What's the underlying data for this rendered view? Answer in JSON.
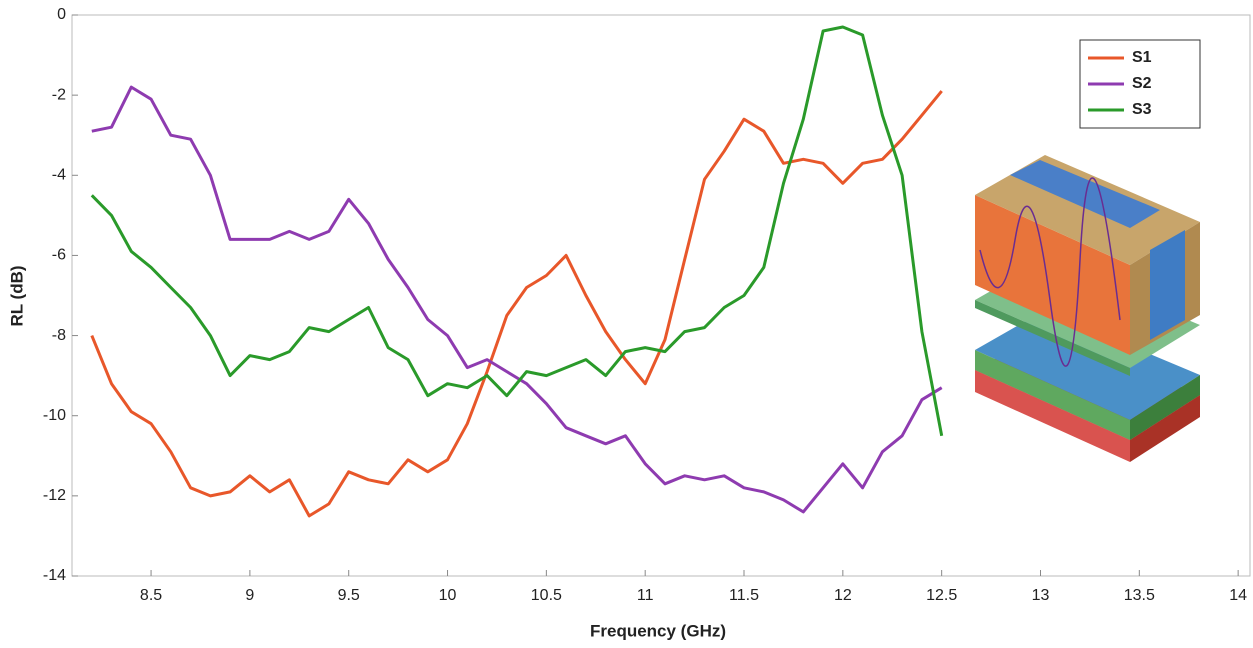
{
  "chart_data": {
    "type": "line",
    "xlabel": "Frequency (GHz)",
    "ylabel": "RL (dB)",
    "x": [
      8.2,
      8.3,
      8.4,
      8.5,
      8.6,
      8.7,
      8.8,
      8.9,
      9.0,
      9.1,
      9.2,
      9.3,
      9.4,
      9.5,
      9.6,
      9.7,
      9.8,
      9.9,
      10.0,
      10.1,
      10.2,
      10.3,
      10.4,
      10.5,
      10.6,
      10.7,
      10.8,
      10.9,
      11.0,
      11.1,
      11.2,
      11.3,
      11.4,
      11.5,
      11.6,
      11.7,
      11.8,
      11.9,
      12.0,
      12.1,
      12.2,
      12.3,
      12.4,
      12.5
    ],
    "series": [
      {
        "name": "S1",
        "color": "#e8572a",
        "values": [
          -8.0,
          -9.2,
          -9.9,
          -10.2,
          -10.9,
          -11.8,
          -12.0,
          -11.9,
          -11.5,
          -11.9,
          -11.6,
          -12.5,
          -12.2,
          -11.4,
          -11.6,
          -11.7,
          -11.1,
          -11.4,
          -11.1,
          -10.2,
          -8.9,
          -7.5,
          -6.8,
          -6.5,
          -6.0,
          -7.0,
          -7.9,
          -8.6,
          -9.2,
          -8.1,
          -6.1,
          -4.1,
          -3.4,
          -2.6,
          -2.9,
          -3.7,
          -3.6,
          -3.7,
          -4.2,
          -3.7,
          -3.6,
          -3.1,
          -2.5,
          -1.9
        ]
      },
      {
        "name": "S2",
        "color": "#8e3bb0",
        "values": [
          -2.9,
          -2.8,
          -1.8,
          -2.1,
          -3.0,
          -3.1,
          -4.0,
          -5.6,
          -5.6,
          -5.6,
          -5.4,
          -5.6,
          -5.4,
          -4.6,
          -5.2,
          -6.1,
          -6.8,
          -7.6,
          -8.0,
          -8.8,
          -8.6,
          -8.9,
          -9.2,
          -9.7,
          -10.3,
          -10.5,
          -10.7,
          -10.5,
          -11.2,
          -11.7,
          -11.5,
          -11.6,
          -11.5,
          -11.8,
          -11.9,
          -12.1,
          -12.4,
          -11.8,
          -11.2,
          -11.8,
          -10.9,
          -10.5,
          -9.6,
          -9.3
        ]
      },
      {
        "name": "S3",
        "color": "#2a9a2a",
        "values": [
          -4.5,
          -5.0,
          -5.9,
          -6.3,
          -6.8,
          -7.3,
          -8.0,
          -9.0,
          -8.5,
          -8.6,
          -8.4,
          -7.8,
          -7.9,
          -7.6,
          -7.3,
          -8.3,
          -8.6,
          -9.5,
          -9.2,
          -9.3,
          -9.0,
          -9.5,
          -8.9,
          -9.0,
          -8.8,
          -8.6,
          -9.0,
          -8.4,
          -8.3,
          -8.4,
          -7.9,
          -7.8,
          -7.3,
          -7.0,
          -6.3,
          -4.2,
          -2.6,
          -0.4,
          -0.3,
          -0.5,
          -2.5,
          -4.0,
          -7.9,
          -10.5
        ]
      }
    ],
    "xlim": [
      8.1,
      14.06
    ],
    "ylim": [
      -14,
      0
    ],
    "xticks": [
      8.5,
      9,
      9.5,
      10,
      10.5,
      11,
      11.5,
      12,
      12.5,
      13,
      13.5,
      14
    ],
    "yticks": [
      0,
      -2,
      -4,
      -6,
      -8,
      -10,
      -12,
      -14
    ],
    "legend": "upper right"
  }
}
